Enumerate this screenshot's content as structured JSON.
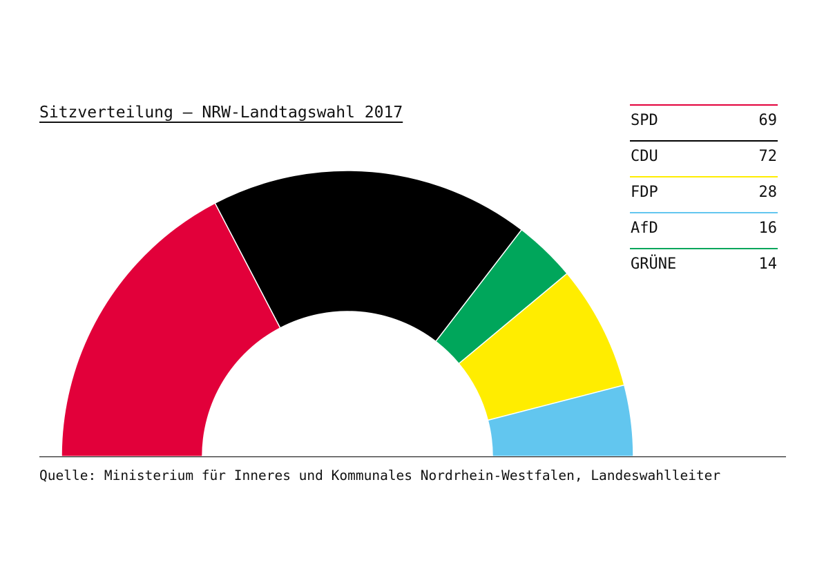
{
  "chart_data": {
    "type": "pie",
    "subtype": "parliament-half-donut",
    "title": "Sitzverteilung – NRW-Landtagswahl 2017",
    "source": "Quelle: Ministerium für Inneres und Kommunales Nordrhein-Westfalen, Landeswahlleiter",
    "slices": [
      {
        "party": "SPD",
        "seats": 69,
        "color": "#e2003a"
      },
      {
        "party": "CDU",
        "seats": 72,
        "color": "#000000"
      },
      {
        "party": "GRÜNE",
        "seats": 14,
        "color": "#00a65b"
      },
      {
        "party": "FDP",
        "seats": 28,
        "color": "#ffed00"
      },
      {
        "party": "AfD",
        "seats": 16,
        "color": "#62c6ef"
      }
    ],
    "legend": [
      {
        "party": "SPD",
        "seats": "69",
        "color": "#e2003a"
      },
      {
        "party": "CDU",
        "seats": "72",
        "color": "#000000"
      },
      {
        "party": "FDP",
        "seats": "28",
        "color": "#ffed00"
      },
      {
        "party": "AfD",
        "seats": "16",
        "color": "#62c6ef"
      },
      {
        "party": "GRÜNE",
        "seats": "14",
        "color": "#00a65b"
      }
    ]
  }
}
